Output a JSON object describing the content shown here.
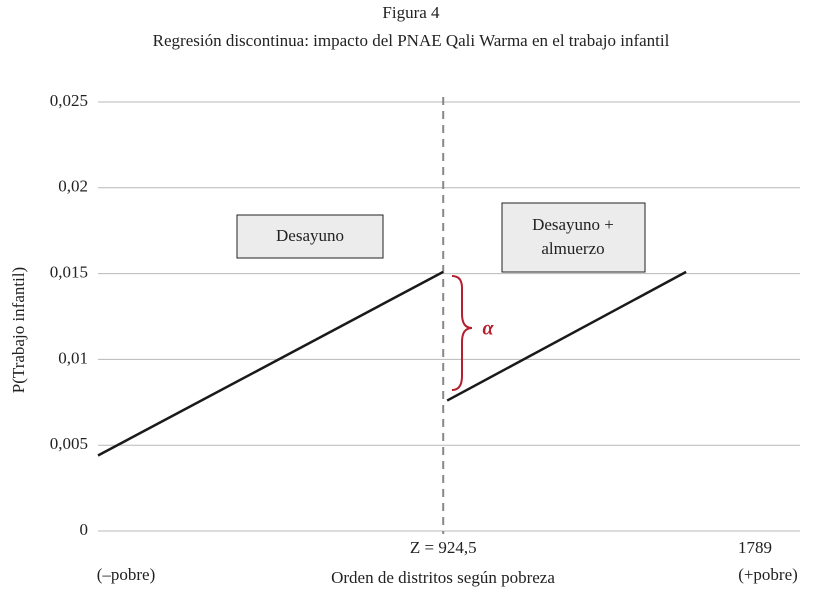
{
  "chart_data": {
    "type": "line",
    "title": "Figura 4",
    "subtitle": "Regresión discontinua: impacto del PNAE Qali Warma en el trabajo infantil",
    "xlabel": "Orden de distritos según pobreza",
    "ylabel": "P(Trabajo infantil)",
    "xlim": [
      0,
      1880
    ],
    "ylim": [
      0,
      0.025
    ],
    "xticks": [
      {
        "value": 924.5,
        "label": "Z = 924,5"
      },
      1789
    ],
    "yticks": [
      0,
      {
        "value": 0.005,
        "label": "0,005"
      },
      {
        "value": 0.01,
        "label": "0,01"
      },
      {
        "value": 0.015,
        "label": "0,015"
      },
      {
        "value": 0.02,
        "label": "0,02"
      },
      {
        "value": 0.025,
        "label": "0,025"
      }
    ],
    "grid": true,
    "series": [
      {
        "color": "#1a1a1a",
        "x": [
          0,
          924.5
        ],
        "values": [
          0.0044,
          0.0151
        ]
      },
      {
        "color": "#1a1a1a",
        "x": [
          935,
          1575
        ],
        "values": [
          0.0076,
          0.0151
        ]
      }
    ],
    "boxes": [
      [
        "Desayuno"
      ],
      [
        "Desayuno +",
        "almuerzo"
      ]
    ],
    "gap_label": "α",
    "x_end_labels": [
      "(–pobre)",
      "(+pobre)"
    ]
  }
}
